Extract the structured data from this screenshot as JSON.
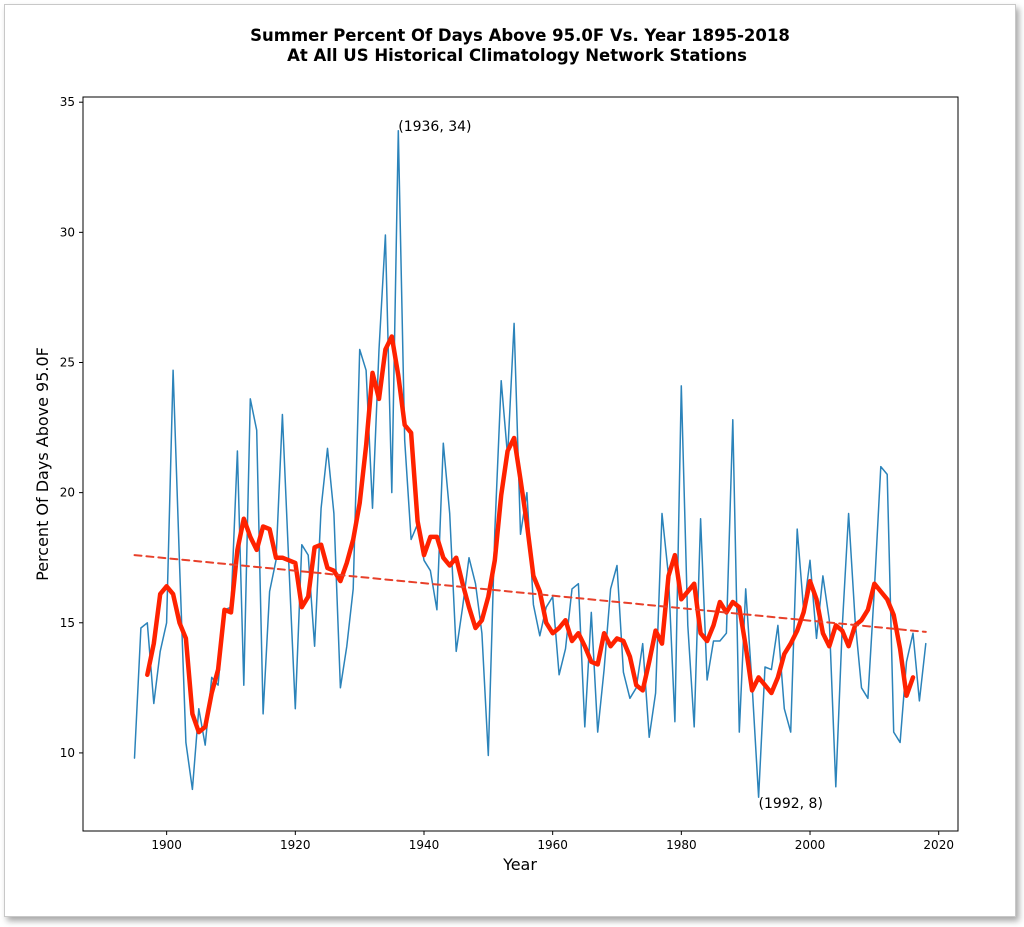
{
  "chart_data": {
    "type": "line",
    "title_line1": "Summer Percent Of Days Above 95.0F Vs. Year 1895-2018",
    "title_line2": "At All US Historical Climatology Network Stations",
    "xlabel": "Year",
    "ylabel": "Percent Of Days Above 95.0F",
    "xlim": [
      1887,
      2023
    ],
    "ylim": [
      7,
      35.2
    ],
    "xticks": [
      1900,
      1920,
      1940,
      1960,
      1980,
      2000,
      2020
    ],
    "yticks": [
      10,
      15,
      20,
      25,
      30,
      35
    ],
    "grid": false,
    "colors": {
      "annual": "#2b83ba",
      "smooth": "#ff2200",
      "trend": "#e8402a"
    },
    "annotations": [
      {
        "text": "(1936, 34)",
        "x": 1936,
        "y": 34
      },
      {
        "text": "(1992, 8)",
        "x": 1992,
        "y": 8
      }
    ],
    "series": [
      {
        "style": "annual",
        "x": [
          1895,
          1896,
          1897,
          1898,
          1899,
          1900,
          1901,
          1902,
          1903,
          1904,
          1905,
          1906,
          1907,
          1908,
          1909,
          1910,
          1911,
          1912,
          1913,
          1914,
          1915,
          1916,
          1917,
          1918,
          1919,
          1920,
          1921,
          1922,
          1923,
          1924,
          1925,
          1926,
          1927,
          1928,
          1929,
          1930,
          1931,
          1932,
          1933,
          1934,
          1935,
          1936,
          1937,
          1938,
          1939,
          1940,
          1941,
          1942,
          1943,
          1944,
          1945,
          1946,
          1947,
          1948,
          1949,
          1950,
          1951,
          1952,
          1953,
          1954,
          1955,
          1956,
          1957,
          1958,
          1959,
          1960,
          1961,
          1962,
          1963,
          1964,
          1965,
          1966,
          1967,
          1968,
          1969,
          1970,
          1971,
          1972,
          1973,
          1974,
          1975,
          1976,
          1977,
          1978,
          1979,
          1980,
          1981,
          1982,
          1983,
          1984,
          1985,
          1986,
          1987,
          1988,
          1989,
          1990,
          1991,
          1992,
          1993,
          1994,
          1995,
          1996,
          1997,
          1998,
          1999,
          2000,
          2001,
          2002,
          2003,
          2004,
          2005,
          2006,
          2007,
          2008,
          2009,
          2010,
          2011,
          2012,
          2013,
          2014,
          2015,
          2016,
          2017,
          2018
        ],
        "y": [
          9.8,
          14.8,
          15.0,
          11.9,
          13.9,
          15.0,
          24.7,
          17.3,
          10.4,
          8.6,
          11.7,
          10.3,
          12.9,
          12.6,
          15.5,
          15.6,
          21.6,
          12.6,
          23.6,
          22.4,
          11.5,
          16.2,
          17.4,
          23.0,
          17.2,
          11.7,
          18.0,
          17.6,
          14.1,
          19.4,
          21.7,
          19.2,
          12.5,
          14.1,
          16.3,
          25.5,
          24.7,
          19.4,
          25.5,
          29.9,
          20.0,
          33.9,
          22.0,
          18.2,
          18.8,
          17.4,
          17.0,
          15.5,
          21.9,
          19.2,
          13.9,
          15.6,
          17.5,
          16.5,
          14.6,
          9.9,
          18.5,
          24.3,
          21.4,
          26.5,
          18.4,
          20.0,
          15.7,
          14.5,
          15.6,
          16.0,
          13.0,
          14.0,
          16.3,
          16.5,
          11.0,
          15.4,
          10.8,
          13.2,
          16.3,
          17.2,
          13.1,
          12.1,
          12.5,
          14.2,
          10.6,
          12.3,
          19.2,
          16.8,
          11.2,
          24.1,
          14.9,
          11.0,
          19.0,
          12.8,
          14.3,
          14.3,
          14.6,
          22.8,
          10.8,
          16.3,
          12.6,
          8.3,
          13.3,
          13.2,
          14.9,
          11.7,
          10.8,
          18.6,
          15.5,
          17.4,
          14.4,
          16.8,
          15.1,
          8.7,
          14.8,
          19.2,
          15.1,
          12.5,
          12.1,
          16.3,
          21.0,
          20.7,
          10.8,
          10.4,
          13.5,
          14.6,
          12.0,
          14.2
        ]
      },
      {
        "style": "smooth",
        "x": [
          1897,
          1898,
          1899,
          1900,
          1901,
          1902,
          1903,
          1904,
          1905,
          1906,
          1907,
          1908,
          1909,
          1910,
          1911,
          1912,
          1913,
          1914,
          1915,
          1916,
          1917,
          1918,
          1919,
          1920,
          1921,
          1922,
          1923,
          1924,
          1925,
          1926,
          1927,
          1928,
          1929,
          1930,
          1931,
          1932,
          1933,
          1934,
          1935,
          1936,
          1937,
          1938,
          1939,
          1940,
          1941,
          1942,
          1943,
          1944,
          1945,
          1946,
          1947,
          1948,
          1949,
          1950,
          1951,
          1952,
          1953,
          1954,
          1955,
          1956,
          1957,
          1958,
          1959,
          1960,
          1961,
          1962,
          1963,
          1964,
          1965,
          1966,
          1967,
          1968,
          1969,
          1970,
          1971,
          1972,
          1973,
          1974,
          1975,
          1976,
          1977,
          1978,
          1979,
          1980,
          1981,
          1982,
          1983,
          1984,
          1985,
          1986,
          1987,
          1988,
          1989,
          1990,
          1991,
          1992,
          1993,
          1994,
          1995,
          1996,
          1997,
          1998,
          1999,
          2000,
          2001,
          2002,
          2003,
          2004,
          2005,
          2006,
          2007,
          2008,
          2009,
          2010,
          2011,
          2012,
          2013,
          2014,
          2015,
          2016
        ],
        "y": [
          13.0,
          14.2,
          16.1,
          16.4,
          16.1,
          15.0,
          14.4,
          11.5,
          10.8,
          11.0,
          12.3,
          13.2,
          15.5,
          15.4,
          17.8,
          19.0,
          18.3,
          17.8,
          18.7,
          18.6,
          17.5,
          17.5,
          17.4,
          17.3,
          15.6,
          16.0,
          17.9,
          18.0,
          17.1,
          17.0,
          16.6,
          17.3,
          18.2,
          19.6,
          21.8,
          24.6,
          23.6,
          25.5,
          26.0,
          24.5,
          22.6,
          22.3,
          18.9,
          17.6,
          18.3,
          18.3,
          17.5,
          17.2,
          17.5,
          16.5,
          15.6,
          14.8,
          15.1,
          16.0,
          17.4,
          19.9,
          21.6,
          22.1,
          20.5,
          18.8,
          16.8,
          16.2,
          15.0,
          14.6,
          14.8,
          15.1,
          14.3,
          14.6,
          14.1,
          13.5,
          13.4,
          14.6,
          14.1,
          14.4,
          14.3,
          13.7,
          12.6,
          12.4,
          13.5,
          14.7,
          14.2,
          16.8,
          17.6,
          15.9,
          16.2,
          16.5,
          14.6,
          14.3,
          14.9,
          15.8,
          15.4,
          15.8,
          15.6,
          14.1,
          12.4,
          12.9,
          12.6,
          12.3,
          12.9,
          13.8,
          14.2,
          14.7,
          15.4,
          16.6,
          15.9,
          14.6,
          14.1,
          14.9,
          14.7,
          14.1,
          14.9,
          15.1,
          15.5,
          16.5,
          16.2,
          15.9,
          15.3,
          14.0,
          12.2,
          12.9
        ]
      },
      {
        "style": "trend",
        "x": [
          1895,
          2018
        ],
        "y": [
          17.6,
          14.65
        ]
      }
    ]
  }
}
